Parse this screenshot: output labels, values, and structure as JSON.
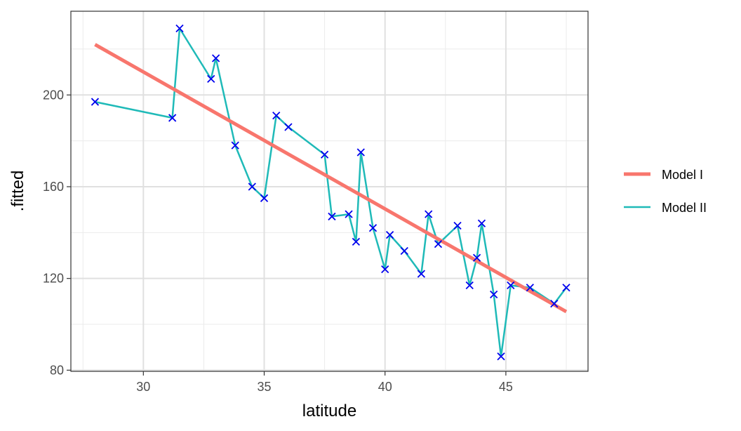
{
  "chart_data": {
    "type": "line",
    "title": "",
    "xlabel": "latitude",
    "ylabel": ".fitted",
    "xlim": [
      27.0,
      48.4
    ],
    "ylim": [
      79.5,
      236.5
    ],
    "x_ticks": [
      30,
      35,
      40,
      45
    ],
    "y_ticks": [
      80,
      120,
      160,
      200
    ],
    "grid": true,
    "legend_position": "right",
    "series": [
      {
        "name": "Model I",
        "kind": "line",
        "color": "#F8766D",
        "x": [
          28.0,
          47.5
        ],
        "y": [
          222.0,
          105.5
        ]
      },
      {
        "name": "Model II",
        "kind": "line",
        "color": "#1FBAB8",
        "marker_color": "#0000EE",
        "marker": "x",
        "x": [
          28.0,
          31.2,
          31.5,
          32.8,
          33.0,
          33.8,
          34.5,
          35.0,
          35.5,
          36.0,
          37.5,
          37.8,
          38.5,
          38.8,
          39.0,
          39.5,
          40.0,
          40.2,
          40.8,
          41.5,
          41.8,
          42.2,
          43.0,
          43.5,
          43.8,
          44.0,
          44.5,
          44.8,
          45.2,
          46.0,
          47.0,
          47.5
        ],
        "y": [
          197,
          190,
          229,
          207,
          216,
          178,
          160,
          155,
          191,
          186,
          174,
          147,
          148,
          136,
          175,
          142,
          124,
          139,
          132,
          122,
          148,
          135,
          143,
          117,
          129,
          144,
          113,
          86,
          117,
          116,
          109,
          116
        ]
      }
    ]
  }
}
